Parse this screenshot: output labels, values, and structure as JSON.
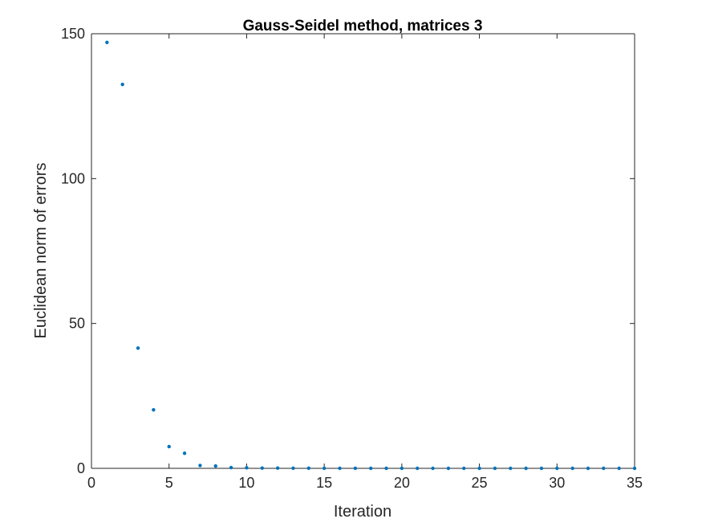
{
  "chart_data": {
    "type": "scatter",
    "title": "Gauss-Seidel method, matrices 3",
    "xlabel": "Iteration",
    "ylabel": "Euclidean norm of errors",
    "xlim": [
      0,
      35
    ],
    "ylim": [
      0,
      150
    ],
    "xticks": [
      0,
      5,
      10,
      15,
      20,
      25,
      30,
      35
    ],
    "yticks": [
      0,
      50,
      100,
      150
    ],
    "grid": false,
    "box": true,
    "marker_color": "#0072BD",
    "series": [
      {
        "x": [
          1,
          2,
          3,
          4,
          5,
          6,
          7,
          8,
          9,
          10,
          11,
          12,
          13,
          14,
          15,
          16,
          17,
          18,
          19,
          20,
          21,
          22,
          23,
          24,
          25,
          26,
          27,
          28,
          29,
          30,
          31,
          32,
          33,
          34,
          35
        ],
        "y": [
          147,
          132.5,
          41.5,
          20.2,
          7.5,
          5.2,
          1.0,
          0.8,
          0.25,
          0.2,
          0.1,
          0.08,
          0.05,
          0.04,
          0.03,
          0.02,
          0.02,
          0.01,
          0.01,
          0.01,
          0.0,
          0.0,
          0.0,
          0.0,
          0.0,
          0.0,
          0.0,
          0.0,
          0.0,
          0.0,
          0.0,
          0.0,
          0.0,
          0.0,
          0.0
        ]
      }
    ]
  }
}
